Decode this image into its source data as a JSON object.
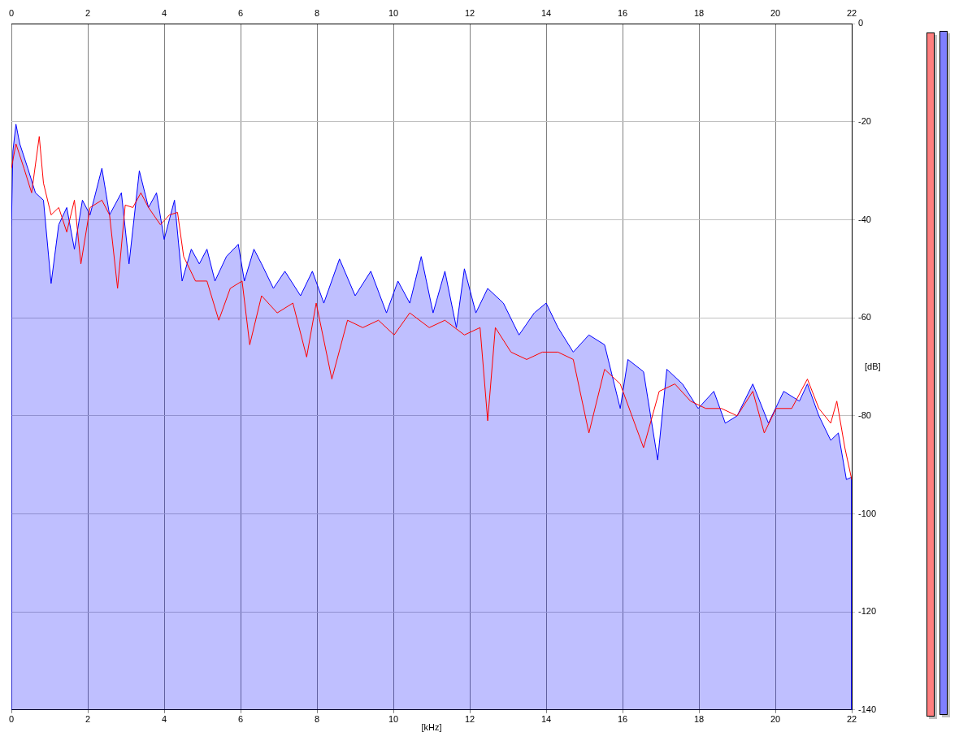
{
  "chart_data": {
    "type": "line",
    "xlabel": "[kHz]",
    "ylabel": "[dB]",
    "xlim": [
      0,
      22
    ],
    "xticks": [
      0,
      2,
      4,
      6,
      8,
      10,
      12,
      14,
      16,
      18,
      20,
      22
    ],
    "x2lim": [
      0,
      22
    ],
    "x2ticks": [
      0,
      2,
      4,
      6,
      8,
      10,
      12,
      14,
      16,
      18,
      20,
      22
    ],
    "ylim": [
      -140,
      0
    ],
    "yticks": [
      0,
      -20,
      -40,
      -60,
      -80,
      -100,
      -120,
      -140
    ],
    "grid": true,
    "legend": false,
    "marker": "none",
    "line_style": "solid",
    "series": [
      {
        "type": "line",
        "color": "#ff0000",
        "x": [
          0,
          0.12,
          0.33,
          0.53,
          0.73,
          0.84,
          1.04,
          1.24,
          1.45,
          1.65,
          1.82,
          2.06,
          2.37,
          2.57,
          2.78,
          2.98,
          3.18,
          3.39,
          3.59,
          3.9,
          4.14,
          4.35,
          4.51,
          4.82,
          5.12,
          5.43,
          5.73,
          6.04,
          6.24,
          6.55,
          6.96,
          7.37,
          7.73,
          7.98,
          8.39,
          8.8,
          9.2,
          9.61,
          10.02,
          10.43,
          10.94,
          11.35,
          11.86,
          12.27,
          12.47,
          12.67,
          13.08,
          13.49,
          13.9,
          14.31,
          14.71,
          15.12,
          15.53,
          15.94,
          16.55,
          16.96,
          17.37,
          17.78,
          18.18,
          18.59,
          19,
          19.41,
          19.71,
          20.02,
          20.43,
          20.84,
          21.14,
          21.45,
          21.61,
          21.82,
          22
        ],
        "values": [
          -29.5,
          -24.5,
          -29.5,
          -34.5,
          -23,
          -32.5,
          -39,
          -37.5,
          -42.5,
          -36,
          -49,
          -37.5,
          -36,
          -39,
          -54,
          -37,
          -37.5,
          -34.5,
          -37.5,
          -41,
          -39,
          -38.5,
          -47.5,
          -52.5,
          -52.5,
          -60.5,
          -54,
          -52.5,
          -65.5,
          -55.5,
          -59,
          -57,
          -68,
          -57,
          -72.5,
          -60.5,
          -62,
          -60.5,
          -63.5,
          -59,
          -62,
          -60.5,
          -63.5,
          -62,
          -81,
          -62,
          -67,
          -68.5,
          -67,
          -67,
          -68.5,
          -83.5,
          -70.5,
          -73.5,
          -86.5,
          -75,
          -73.5,
          -77,
          -78.5,
          -78.5,
          -80,
          -75,
          -83.5,
          -78.5,
          -78.5,
          -72.5,
          -78.5,
          -81.5,
          -77,
          -86.5,
          -93
        ]
      },
      {
        "type": "area",
        "color": "#0000ff",
        "x": [
          0,
          0,
          0.04,
          0.12,
          0.22,
          0.43,
          0.63,
          0.84,
          1.04,
          1.24,
          1.45,
          1.65,
          1.86,
          2.06,
          2.37,
          2.57,
          2.88,
          3.08,
          3.35,
          3.59,
          3.8,
          4,
          4.27,
          4.47,
          4.71,
          4.92,
          5.12,
          5.33,
          5.63,
          5.94,
          6.1,
          6.35,
          6.55,
          6.86,
          7.16,
          7.57,
          7.88,
          8.18,
          8.59,
          9,
          9.41,
          9.82,
          10.12,
          10.43,
          10.73,
          11.04,
          11.35,
          11.65,
          11.86,
          12.16,
          12.47,
          12.88,
          13.29,
          13.69,
          14,
          14.31,
          14.71,
          15.12,
          15.53,
          15.94,
          16.14,
          16.55,
          16.92,
          17.16,
          17.57,
          17.98,
          18.39,
          18.69,
          19,
          19.41,
          19.82,
          20.22,
          20.63,
          20.84,
          21.14,
          21.45,
          21.65,
          21.86,
          22,
          22
        ],
        "values": [
          -140,
          -41.5,
          -26,
          -20.5,
          -24.5,
          -29.5,
          -34.5,
          -36,
          -53,
          -41,
          -37.5,
          -46,
          -36,
          -39,
          -29.5,
          -39,
          -34.5,
          -49,
          -30,
          -37.5,
          -34.5,
          -44,
          -36,
          -52.5,
          -46,
          -49,
          -46,
          -52.5,
          -47.5,
          -45,
          -52.5,
          -46,
          -49,
          -54,
          -50.5,
          -55.5,
          -50.5,
          -57,
          -48,
          -55.5,
          -50.5,
          -59,
          -52.5,
          -57,
          -47.5,
          -59,
          -50.5,
          -62,
          -50,
          -59,
          -54,
          -57,
          -63.5,
          -59,
          -57,
          -62,
          -67,
          -63.5,
          -65.5,
          -78.5,
          -68.5,
          -71,
          -89,
          -70.5,
          -73.5,
          -78.5,
          -75,
          -81.5,
          -80,
          -73.5,
          -81.5,
          -75,
          -77,
          -73.5,
          -80,
          -85,
          -83.5,
          -93,
          -92.5,
          -140
        ]
      }
    ]
  }
}
